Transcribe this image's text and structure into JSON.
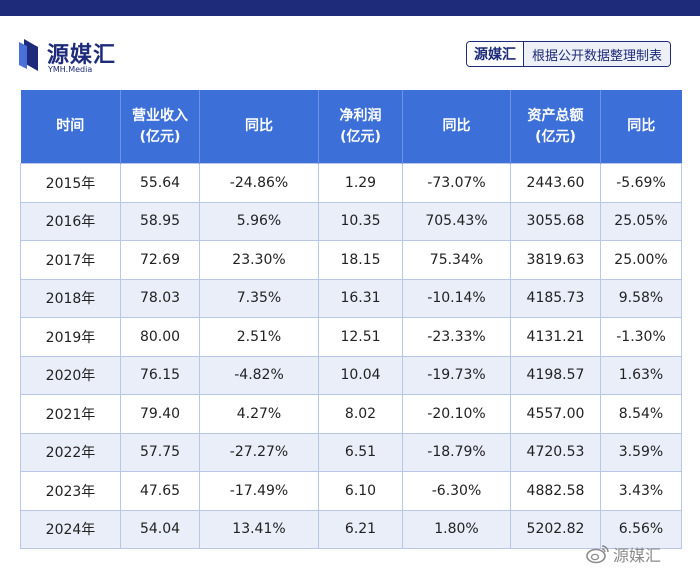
{
  "colors": {
    "brand": "#1e2b7a",
    "header_bg": "#3c6fd8",
    "stripe": "#e9eef9",
    "border": "#b8c6e8"
  },
  "logo": {
    "title": "源媒汇",
    "subtitle": "YMH.Media",
    "icon": "ymh-logo-mark-icon"
  },
  "source": {
    "brand": "源媒汇",
    "text": "根据公开数据整理制表"
  },
  "table": {
    "headers": [
      [
        "时间"
      ],
      [
        "营业收入",
        "(亿元)"
      ],
      [
        "同比"
      ],
      [
        "净利润",
        "(亿元)"
      ],
      [
        "同比"
      ],
      [
        "资产总额",
        "(亿元)"
      ],
      [
        "同比"
      ]
    ],
    "rows": [
      [
        "2015年",
        "55.64",
        "-24.86%",
        "1.29",
        "-73.07%",
        "2443.60",
        "-5.69%"
      ],
      [
        "2016年",
        "58.95",
        "5.96%",
        "10.35",
        "705.43%",
        "3055.68",
        "25.05%"
      ],
      [
        "2017年",
        "72.69",
        "23.30%",
        "18.15",
        "75.34%",
        "3819.63",
        "25.00%"
      ],
      [
        "2018年",
        "78.03",
        "7.35%",
        "16.31",
        "-10.14%",
        "4185.73",
        "9.58%"
      ],
      [
        "2019年",
        "80.00",
        "2.51%",
        "12.51",
        "-23.33%",
        "4131.21",
        "-1.30%"
      ],
      [
        "2020年",
        "76.15",
        "-4.82%",
        "10.04",
        "-19.73%",
        "4198.57",
        "1.63%"
      ],
      [
        "2021年",
        "79.40",
        "4.27%",
        "8.02",
        "-20.10%",
        "4557.00",
        "8.54%"
      ],
      [
        "2022年",
        "57.75",
        "-27.27%",
        "6.51",
        "-18.79%",
        "4720.53",
        "3.59%"
      ],
      [
        "2023年",
        "47.65",
        "-17.49%",
        "6.10",
        "-6.30%",
        "4882.58",
        "3.43%"
      ],
      [
        "2024年",
        "54.04",
        "13.41%",
        "6.21",
        "1.80%",
        "5202.82",
        "6.56%"
      ]
    ]
  },
  "watermark": {
    "text": "源媒汇",
    "icon": "weibo-icon"
  }
}
